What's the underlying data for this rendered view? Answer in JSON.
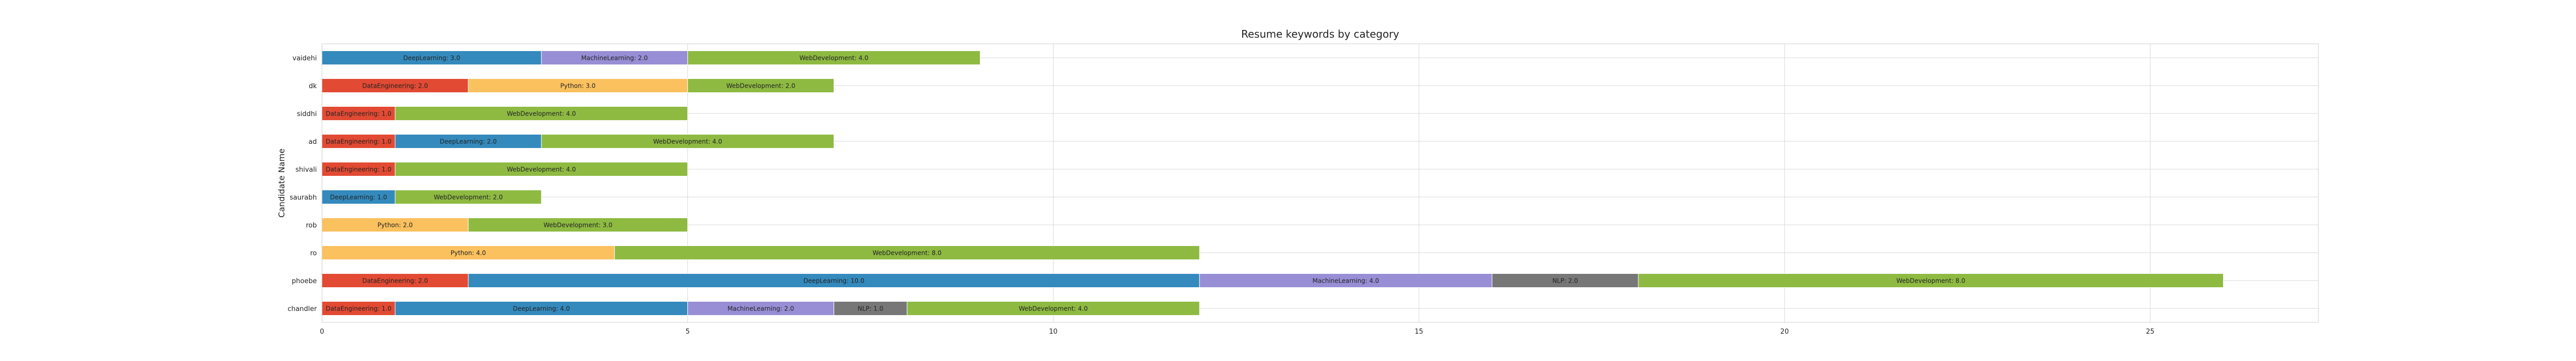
{
  "chart_data": {
    "type": "bar",
    "orientation": "horizontal",
    "stacked": true,
    "title": "Resume keywords by category",
    "xlabel": "",
    "ylabel": "Candidate Name",
    "xlim": [
      0,
      27.3
    ],
    "xticks": [
      0,
      5,
      10,
      15,
      20,
      25
    ],
    "grid": true,
    "colors": {
      "DataEngineering": "#e24a33",
      "DeepLearning": "#348abd",
      "MachineLearning": "#988ed5",
      "NLP": "#777777",
      "Python": "#fbc15e",
      "WebDevelopment": "#8eba42"
    },
    "categories": [
      "vaidehi",
      "dk",
      "siddhi",
      "ad",
      "shivali",
      "saurabh",
      "rob",
      "ro",
      "phoebe",
      "chandler"
    ],
    "rows": [
      {
        "name": "vaidehi",
        "segments": [
          {
            "category": "DeepLearning",
            "value": 3.0,
            "label": "DeepLearning: 3.0"
          },
          {
            "category": "MachineLearning",
            "value": 2.0,
            "label": "MachineLearning: 2.0"
          },
          {
            "category": "WebDevelopment",
            "value": 4.0,
            "label": "WebDevelopment: 4.0"
          }
        ]
      },
      {
        "name": "dk",
        "segments": [
          {
            "category": "DataEngineering",
            "value": 2.0,
            "label": "DataEngineering: 2.0"
          },
          {
            "category": "Python",
            "value": 3.0,
            "label": "Python: 3.0"
          },
          {
            "category": "WebDevelopment",
            "value": 2.0,
            "label": "WebDevelopment: 2.0"
          }
        ]
      },
      {
        "name": "siddhi",
        "segments": [
          {
            "category": "DataEngineering",
            "value": 1.0,
            "label": "DataEngineering: 1.0"
          },
          {
            "category": "WebDevelopment",
            "value": 4.0,
            "label": "WebDevelopment: 4.0"
          }
        ]
      },
      {
        "name": "ad",
        "segments": [
          {
            "category": "DataEngineering",
            "value": 1.0,
            "label": "DataEngineering: 1.0"
          },
          {
            "category": "DeepLearning",
            "value": 2.0,
            "label": "DeepLearning: 2.0"
          },
          {
            "category": "WebDevelopment",
            "value": 4.0,
            "label": "WebDevelopment: 4.0"
          }
        ]
      },
      {
        "name": "shivali",
        "segments": [
          {
            "category": "DataEngineering",
            "value": 1.0,
            "label": "DataEngineering: 1.0"
          },
          {
            "category": "WebDevelopment",
            "value": 4.0,
            "label": "WebDevelopment: 4.0"
          }
        ]
      },
      {
        "name": "saurabh",
        "segments": [
          {
            "category": "DeepLearning",
            "value": 1.0,
            "label": "DeepLearning: 1.0"
          },
          {
            "category": "WebDevelopment",
            "value": 2.0,
            "label": "WebDevelopment: 2.0"
          }
        ]
      },
      {
        "name": "rob",
        "segments": [
          {
            "category": "Python",
            "value": 2.0,
            "label": "Python: 2.0"
          },
          {
            "category": "WebDevelopment",
            "value": 3.0,
            "label": "WebDevelopment: 3.0"
          }
        ]
      },
      {
        "name": "ro",
        "segments": [
          {
            "category": "Python",
            "value": 4.0,
            "label": "Python: 4.0"
          },
          {
            "category": "WebDevelopment",
            "value": 8.0,
            "label": "WebDevelopment: 8.0"
          }
        ]
      },
      {
        "name": "phoebe",
        "segments": [
          {
            "category": "DataEngineering",
            "value": 2.0,
            "label": "DataEngineering: 2.0"
          },
          {
            "category": "DeepLearning",
            "value": 10.0,
            "label": "DeepLearning: 10.0"
          },
          {
            "category": "MachineLearning",
            "value": 4.0,
            "label": "MachineLearning: 4.0"
          },
          {
            "category": "NLP",
            "value": 2.0,
            "label": "NLP: 2.0"
          },
          {
            "category": "WebDevelopment",
            "value": 8.0,
            "label": "WebDevelopment: 8.0"
          }
        ]
      },
      {
        "name": "chandler",
        "segments": [
          {
            "category": "DataEngineering",
            "value": 1.0,
            "label": "DataEngineering: 1.0"
          },
          {
            "category": "DeepLearning",
            "value": 4.0,
            "label": "DeepLearning: 4.0"
          },
          {
            "category": "MachineLearning",
            "value": 2.0,
            "label": "MachineLearning: 2.0"
          },
          {
            "category": "NLP",
            "value": 1.0,
            "label": "NLP: 1.0"
          },
          {
            "category": "WebDevelopment",
            "value": 4.0,
            "label": "WebDevelopment: 4.0"
          }
        ]
      }
    ]
  }
}
